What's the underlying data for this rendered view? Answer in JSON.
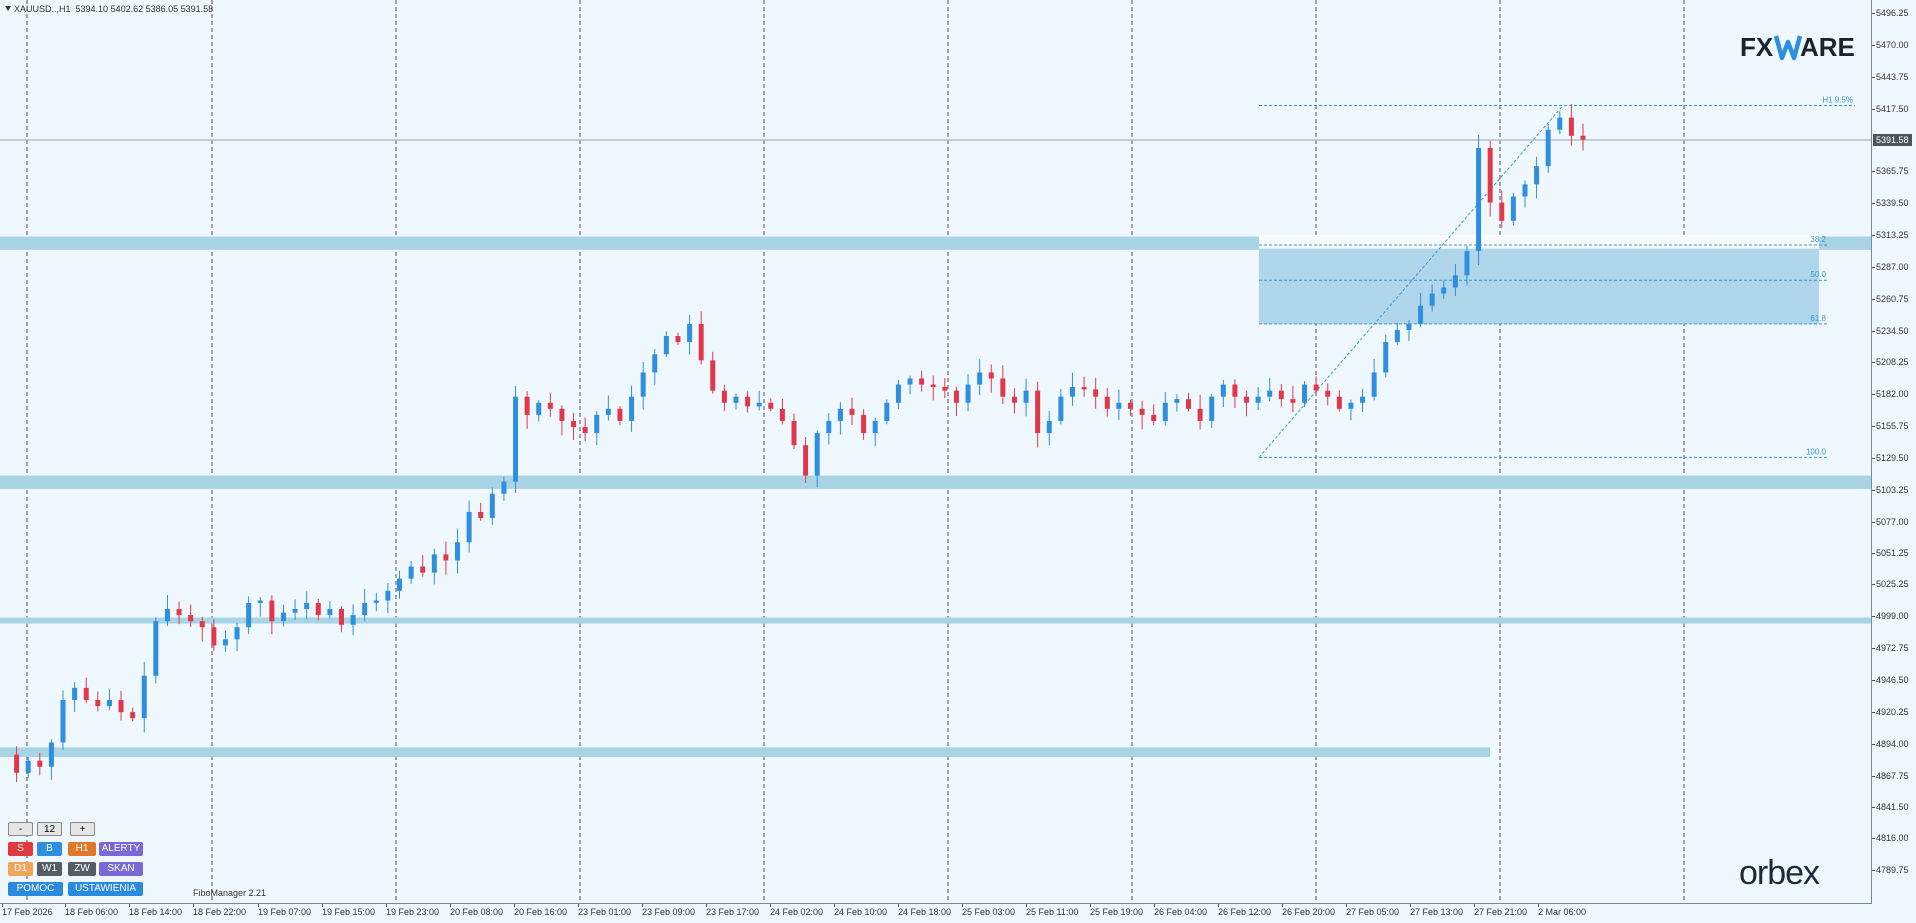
{
  "symbol": {
    "name": "XAUUSD..,H1",
    "ohlc": "5394.10 5402.62 5386.05 5391.58"
  },
  "current_price": "5391.58",
  "brand": {
    "fxware_a": "FX",
    "fxware_b": "ARE",
    "orbex": "orbex"
  },
  "fibo": {
    "manager_label": "FiboManager 2.21",
    "levels": [
      "H1 9.5%",
      "38.2",
      "50.0",
      "61.8",
      "100.0"
    ]
  },
  "colors": {
    "bull": "#2e8ee0",
    "bear": "#e0384a",
    "zone": "#a8d4e6",
    "fibo_zone": "#b0d6ec",
    "fibo_line": "#3a95d0",
    "grid": "#222"
  },
  "controls": {
    "minus": "-",
    "value": "12",
    "plus": "+",
    "s": "S",
    "b": "B",
    "h1": "H1",
    "alerty": "ALERTY",
    "d1": "D1",
    "w1": "W1",
    "zw": "ZW",
    "skan": "SKAN",
    "pomoc": "POMOC",
    "ustawienia": "USTAWIENIA"
  },
  "price_axis": [
    "5496.25",
    "5470.00",
    "5443.75",
    "5417.50",
    "5365.75",
    "5339.50",
    "5313.25",
    "5287.00",
    "5260.75",
    "5234.50",
    "5208.25",
    "5182.00",
    "5155.75",
    "5129.50",
    "5103.25",
    "5077.00",
    "5051.25",
    "5025.25",
    "4999.00",
    "4972.75",
    "4946.50",
    "4920.25",
    "4894.00",
    "4867.75",
    "4841.50",
    "4816.00",
    "4789.75"
  ],
  "time_axis": [
    "17 Feb 2026",
    "18 Feb 06:00",
    "18 Feb 14:00",
    "18 Feb 22:00",
    "19 Feb 07:00",
    "19 Feb 15:00",
    "19 Feb 23:00",
    "20 Feb 08:00",
    "20 Feb 16:00",
    "23 Feb 01:00",
    "23 Feb 09:00",
    "23 Feb 17:00",
    "24 Feb 02:00",
    "24 Feb 10:00",
    "24 Feb 18:00",
    "25 Feb 03:00",
    "25 Feb 11:00",
    "25 Feb 19:00",
    "26 Feb 04:00",
    "26 Feb 12:00",
    "26 Feb 20:00",
    "27 Feb 05:00",
    "27 Feb 13:00",
    "27 Feb 21:00",
    "2 Mar 06:00"
  ],
  "chart_data": {
    "type": "candlestick",
    "symbol": "XAUUSD..",
    "timeframe": "H1",
    "y_range": [
      4780,
      5502
    ],
    "support_resistance_zones": [
      [
        5301,
        5312
      ],
      [
        5104,
        5115
      ],
      [
        4993,
        4998
      ],
      [
        4883,
        4891
      ]
    ],
    "fibonacci": {
      "high": 5420,
      "low": 5130,
      "zone": [
        5240,
        5302
      ],
      "levels": {
        "9.5%": 5420,
        "38.2": 5305,
        "50.0": 5276,
        "61.8": 5240,
        "100.0": 5130
      }
    },
    "path": [
      4885,
      4870,
      4880,
      4875,
      4895,
      4930,
      4940,
      4930,
      4925,
      4930,
      4920,
      4915,
      4950,
      4995,
      5005,
      5000,
      4995,
      4990,
      4975,
      4980,
      4990,
      5010,
      5012,
      4995,
      5002,
      5005,
      5010,
      5000,
      5005,
      4992,
      5000,
      5010,
      5012,
      5020,
      5030,
      5040,
      5035,
      5050,
      5045,
      5060,
      5085,
      5080,
      5100,
      5110,
      5180,
      5165,
      5175,
      5170,
      5160,
      5155,
      5150,
      5165,
      5170,
      5160,
      5180,
      5200,
      5215,
      5230,
      5225,
      5240,
      5210,
      5185,
      5175,
      5180,
      5172,
      5175,
      5170,
      5160,
      5140,
      5115,
      5150,
      5160,
      5170,
      5165,
      5150,
      5160,
      5175,
      5190,
      5195,
      5190,
      5188,
      5185,
      5175,
      5190,
      5200,
      5195,
      5180,
      5175,
      5185,
      5150,
      5160,
      5180,
      5188,
      5186,
      5180,
      5170,
      5175,
      5170,
      5165,
      5160,
      5175,
      5178,
      5170,
      5160,
      5180,
      5190,
      5180,
      5175,
      5180,
      5185,
      5178,
      5175,
      5190,
      5185,
      5180,
      5170,
      5175,
      5180,
      5200,
      5225,
      5235,
      5240,
      5255,
      5265,
      5270,
      5280,
      5300,
      5385,
      5340,
      5325,
      5345,
      5355,
      5370,
      5400,
      5410,
      5395,
      5392
    ]
  }
}
